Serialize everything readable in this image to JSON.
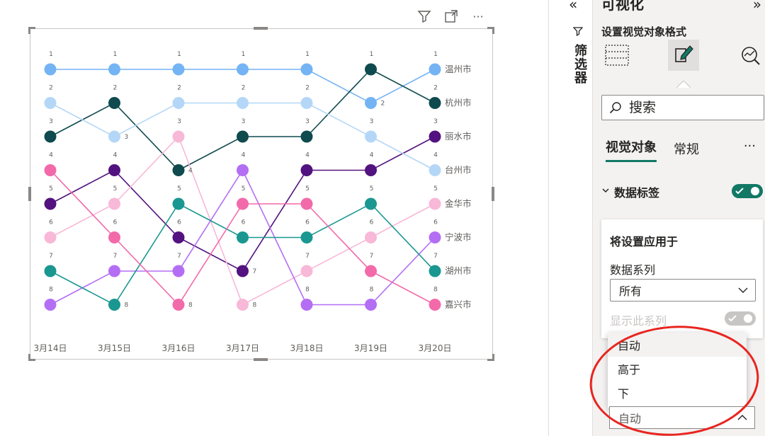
{
  "visual_header": {
    "filter_icon": "funnel-icon",
    "focus_icon": "focus-mode-icon",
    "more_icon": "more-options-icon",
    "more_label": "···"
  },
  "chart_data": {
    "type": "bump",
    "categories": [
      "3月14日",
      "3月15日",
      "3月16日",
      "3月17日",
      "3月18日",
      "3月19日",
      "3月20日"
    ],
    "rank_range": [
      1,
      8
    ],
    "series": [
      {
        "name": "温州市",
        "color": "#74b4f4",
        "ranks": [
          1,
          1,
          1,
          1,
          1,
          2,
          1
        ]
      },
      {
        "name": "杭州市",
        "color": "#0f4a4e",
        "ranks": [
          3,
          2,
          4,
          3,
          3,
          1,
          2
        ]
      },
      {
        "name": "丽水市",
        "color": "#52127f",
        "ranks": [
          5,
          4,
          6,
          7,
          4,
          4,
          3
        ]
      },
      {
        "name": "台州市",
        "color": "#b5d7f7",
        "ranks": [
          2,
          3,
          2,
          2,
          2,
          3,
          4
        ]
      },
      {
        "name": "金华市",
        "color": "#f8b8d8",
        "ranks": [
          6,
          5,
          3,
          8,
          7,
          6,
          5
        ]
      },
      {
        "name": "宁波市",
        "color": "#b46ef4",
        "ranks": [
          8,
          7,
          7,
          4,
          8,
          8,
          6
        ]
      },
      {
        "name": "湖州市",
        "color": "#1a9790",
        "ranks": [
          7,
          8,
          5,
          6,
          6,
          5,
          7
        ]
      },
      {
        "name": "嘉兴市",
        "color": "#f26aaa",
        "ranks": [
          4,
          6,
          8,
          5,
          5,
          7,
          8
        ]
      }
    ]
  },
  "filters_pane": {
    "title": "筛选器",
    "collapse_label": "«",
    "icon": "funnel-icon"
  },
  "viz_pane": {
    "title": "可视化",
    "expand_label": "»",
    "subtitle": "设置视觉对象格式",
    "search_placeholder": "搜索",
    "tabs": [
      {
        "label": "视觉对象",
        "active": true
      },
      {
        "label": "常规",
        "active": false
      }
    ],
    "tabs_more": "···",
    "section": {
      "title": "数据标签",
      "expanded": true,
      "toggle_on": true
    },
    "card": {
      "title": "将设置应用于",
      "series_label": "数据系列",
      "series_value": "所有",
      "show_series_label": "显示此系列",
      "show_series_on": true
    },
    "position_dropdown": {
      "options": [
        "自动",
        "高于",
        "下"
      ],
      "selected": "自动",
      "value": "自动"
    },
    "accent_color": "#117865",
    "annotation_color": "#e8251f"
  }
}
